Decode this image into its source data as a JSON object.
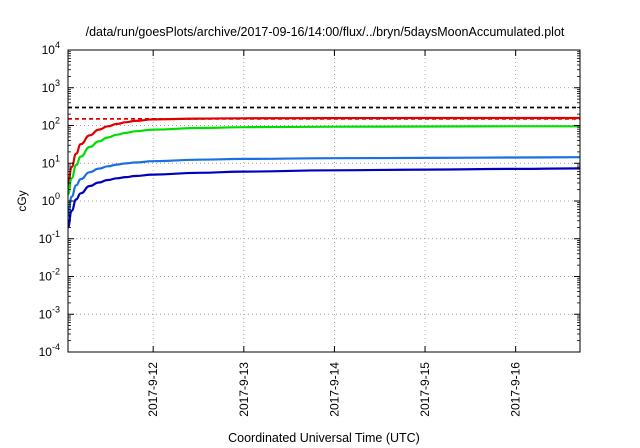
{
  "chart_data": {
    "type": "line",
    "title": "/data/run/goesPlots/archive/2017-09-16/14:00/flux/../bryn/5daysMoonAccumulated.plot",
    "xlabel": "Coordinated Universal Time (UTC)",
    "ylabel": "cGy",
    "y_scale": "log",
    "ylim": [
      0.0001,
      10000
    ],
    "xlim": [
      -0.94,
      4.71
    ],
    "x_ticks": [
      {
        "pos": 0,
        "label": "2017-9-12"
      },
      {
        "pos": 1,
        "label": "2017-9-13"
      },
      {
        "pos": 2,
        "label": "2017-9-14"
      },
      {
        "pos": 3,
        "label": "2017-9-15"
      },
      {
        "pos": 4,
        "label": "2017-9-16"
      }
    ],
    "y_ticks": [
      {
        "value": 0.0001,
        "base": "10",
        "exp": "-4"
      },
      {
        "value": 0.001,
        "base": "10",
        "exp": "-3"
      },
      {
        "value": 0.01,
        "base": "10",
        "exp": "-2"
      },
      {
        "value": 0.1,
        "base": "10",
        "exp": "-1"
      },
      {
        "value": 1,
        "base": "10",
        "exp": "0"
      },
      {
        "value": 10,
        "base": "10",
        "exp": "1"
      },
      {
        "value": 100,
        "base": "10",
        "exp": "2"
      },
      {
        "value": 1000,
        "base": "10",
        "exp": "3"
      },
      {
        "value": 10000,
        "base": "10",
        "exp": "4"
      }
    ],
    "grid": true,
    "thresholds": [
      {
        "value": 300,
        "color": "#000000",
        "dash": "dashed"
      },
      {
        "value": 150,
        "color": "#e00000",
        "dash": "dashed"
      }
    ],
    "series": [
      {
        "color": "#e00000",
        "x": [
          -0.94,
          -0.9,
          -0.85,
          -0.8,
          -0.7,
          -0.6,
          -0.5,
          -0.4,
          -0.3,
          -0.2,
          0,
          0.5,
          1,
          2,
          3,
          4,
          4.71
        ],
        "y": [
          2.5,
          8,
          18,
          32,
          55,
          78,
          95,
          110,
          122,
          132,
          145,
          152,
          155,
          157,
          158,
          158,
          158
        ]
      },
      {
        "color": "#00dd00",
        "x": [
          -0.94,
          -0.9,
          -0.85,
          -0.8,
          -0.7,
          -0.6,
          -0.5,
          -0.4,
          -0.3,
          -0.2,
          0,
          0.5,
          1,
          2,
          3,
          4,
          4.71
        ],
        "y": [
          1.5,
          4,
          9,
          15,
          27,
          38,
          48,
          57,
          64,
          70,
          78,
          86,
          90,
          93,
          94,
          95,
          95
        ]
      },
      {
        "color": "#1a70e0",
        "x": [
          -0.94,
          -0.9,
          -0.85,
          -0.8,
          -0.7,
          -0.6,
          -0.5,
          -0.4,
          -0.3,
          -0.2,
          0,
          0.5,
          1,
          2,
          3,
          4,
          4.71
        ],
        "y": [
          0.4,
          1.3,
          2.6,
          3.8,
          5.8,
          7.2,
          8.3,
          9.2,
          9.9,
          10.5,
          11.3,
          12.4,
          13,
          13.6,
          13.9,
          14.2,
          14.5
        ]
      },
      {
        "color": "#0000c0",
        "x": [
          -0.94,
          -0.9,
          -0.85,
          -0.8,
          -0.7,
          -0.6,
          -0.5,
          -0.4,
          -0.3,
          -0.2,
          0,
          0.5,
          1,
          2,
          3,
          4,
          4.71
        ],
        "y": [
          0.2,
          0.55,
          1.1,
          1.6,
          2.5,
          3.1,
          3.6,
          4.0,
          4.3,
          4.6,
          5.0,
          5.6,
          6.0,
          6.5,
          6.8,
          7.1,
          7.3
        ]
      }
    ]
  }
}
